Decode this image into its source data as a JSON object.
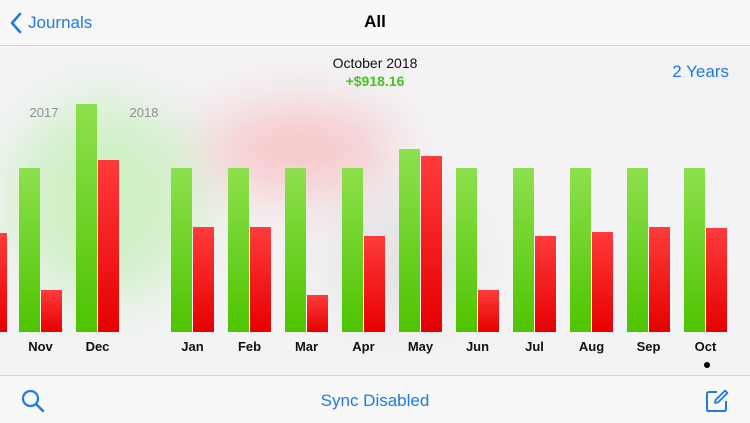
{
  "nav": {
    "back_label": "Journals",
    "title": "All"
  },
  "summary": {
    "period": "October 2018",
    "value": "+$918.16",
    "range_label": "2 Years"
  },
  "toolbar": {
    "sync_label": "Sync Disabled"
  },
  "icons": {
    "back": "chevron-left-icon",
    "search": "search-icon",
    "compose": "compose-icon"
  },
  "colors": {
    "accent": "#1f7ae0",
    "profit": "#46c41b",
    "loss": "#e60000"
  },
  "chart_data": {
    "type": "bar",
    "year_labels": [
      "2017",
      "2018"
    ],
    "categories": [
      "Nov",
      "Dec",
      "Jan",
      "Feb",
      "Mar",
      "Apr",
      "May",
      "Jun",
      "Jul",
      "Aug",
      "Sep",
      "Oct"
    ],
    "series": [
      {
        "color": "green",
        "values": [
          164,
          228,
          164,
          164,
          164,
          164,
          183,
          164,
          164,
          164,
          164,
          164
        ]
      },
      {
        "color": "red",
        "values": [
          42,
          172,
          105,
          105,
          37,
          96,
          176,
          42,
          96,
          100,
          105,
          104
        ]
      }
    ],
    "partial_left_red_value": 99,
    "selected": "Oct",
    "grid": false
  }
}
